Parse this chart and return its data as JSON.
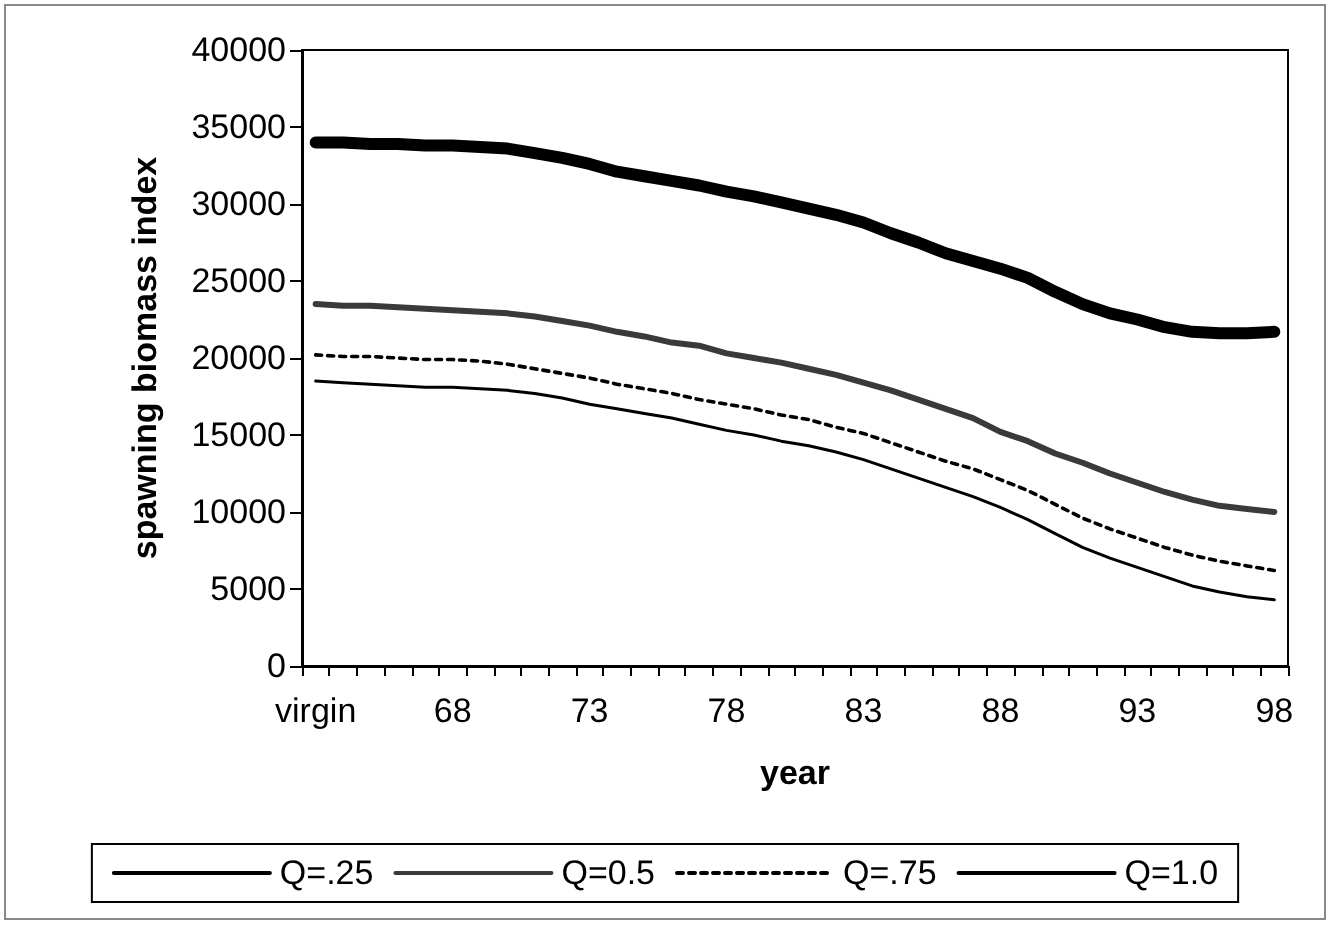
{
  "chart_data": {
    "type": "line",
    "xlabel": "year",
    "ylabel": "spawning biomass index",
    "categories": [
      "virgin",
      null,
      null,
      null,
      null,
      "68",
      null,
      null,
      null,
      null,
      "73",
      null,
      null,
      null,
      null,
      "78",
      null,
      null,
      null,
      null,
      "83",
      null,
      null,
      null,
      null,
      "88",
      null,
      null,
      null,
      null,
      "93",
      null,
      null,
      null,
      null,
      "98"
    ],
    "series": [
      {
        "name": "Q=.25",
        "color": "#000000",
        "line_style": "solid",
        "values": [
          34000,
          34000,
          33900,
          33900,
          33800,
          33800,
          33700,
          33600,
          33300,
          33000,
          32600,
          32100,
          31800,
          31500,
          31200,
          30800,
          30500,
          30100,
          29700,
          29300,
          28800,
          28100,
          27500,
          26800,
          26300,
          25800,
          25200,
          24300,
          23500,
          22900,
          22500,
          22000,
          21700,
          21600,
          21600,
          21700
        ]
      },
      {
        "name": "Q=0.5",
        "color": "#3a3a3a",
        "line_style": "solid",
        "values": [
          23500,
          23400,
          23400,
          23300,
          23200,
          23100,
          23000,
          22900,
          22700,
          22400,
          22100,
          21700,
          21400,
          21000,
          20800,
          20300,
          20000,
          19700,
          19300,
          18900,
          18400,
          17900,
          17300,
          16700,
          16100,
          15200,
          14600,
          13800,
          13200,
          12500,
          11900,
          11300,
          10800,
          10400,
          10200,
          10000
        ]
      },
      {
        "name": "Q=.75",
        "color": "#000000",
        "line_style": "dashed",
        "values": [
          20200,
          20100,
          20100,
          20000,
          19900,
          19900,
          19800,
          19600,
          19300,
          19000,
          18700,
          18300,
          18000,
          17700,
          17300,
          17000,
          16700,
          16300,
          16000,
          15500,
          15100,
          14500,
          13900,
          13300,
          12800,
          12100,
          11400,
          10500,
          9600,
          8900,
          8300,
          7700,
          7200,
          6800,
          6500,
          6200
        ]
      },
      {
        "name": "Q=1.0",
        "color": "#000000",
        "line_style": "solid",
        "values": [
          18500,
          18400,
          18300,
          18200,
          18100,
          18100,
          18000,
          17900,
          17700,
          17400,
          17000,
          16700,
          16400,
          16100,
          15700,
          15300,
          15000,
          14600,
          14300,
          13900,
          13400,
          12800,
          12200,
          11600,
          11000,
          10300,
          9500,
          8600,
          7700,
          7000,
          6400,
          5800,
          5200,
          4800,
          4500,
          4300
        ]
      }
    ],
    "ylim": [
      0,
      40000
    ],
    "yticks": [
      0,
      5000,
      10000,
      15000,
      20000,
      25000,
      30000,
      35000,
      40000
    ],
    "grid": false,
    "legend": "bottom",
    "marker": "none"
  }
}
